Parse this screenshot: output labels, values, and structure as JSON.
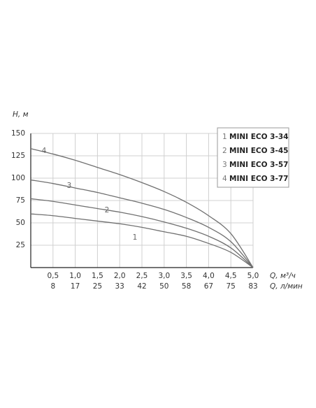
{
  "chart_data": {
    "type": "line",
    "y_label": "H, м",
    "x_label": "Q, м³/ч",
    "x2_label": "Q, л/мин",
    "x": [
      0,
      0.5,
      1.0,
      1.5,
      2.0,
      2.5,
      3.0,
      3.5,
      4.0,
      4.5,
      5.0
    ],
    "series": [
      {
        "label": "1",
        "name": "MINI ECO 3-34",
        "color": "#707070",
        "values": [
          60,
          58,
          55,
          52,
          49,
          45,
          40,
          35,
          27,
          17,
          0
        ]
      },
      {
        "label": "2",
        "name": "MINI ECO 3-45",
        "color": "#707070",
        "values": [
          77,
          74,
          70,
          66,
          62,
          57,
          51,
          44,
          35,
          22,
          0
        ]
      },
      {
        "label": "3",
        "name": "MINI ECO 3-57",
        "color": "#707070",
        "values": [
          98,
          94,
          89,
          84,
          78,
          72,
          65,
          56,
          45,
          29,
          0
        ]
      },
      {
        "label": "4",
        "name": "MINI ECO 3-77",
        "color": "#707070",
        "values": [
          133,
          127,
          120,
          112,
          104,
          95,
          85,
          73,
          58,
          38,
          0
        ]
      }
    ],
    "xlim": [
      0,
      5
    ],
    "ylim": [
      0,
      150
    ],
    "yticks": [
      25,
      50,
      75,
      100,
      125,
      150
    ],
    "xticks": [
      {
        "value": 0.5,
        "label": "0,5"
      },
      {
        "value": 1.0,
        "label": "1,0"
      },
      {
        "value": 1.5,
        "label": "1,5"
      },
      {
        "value": 2.0,
        "label": "2,0"
      },
      {
        "value": 2.5,
        "label": "2,5"
      },
      {
        "value": 3.0,
        "label": "3,0"
      },
      {
        "value": 3.5,
        "label": "3,5"
      },
      {
        "value": 4.0,
        "label": "4,0"
      },
      {
        "value": 4.5,
        "label": "4,5"
      },
      {
        "value": 5.0,
        "label": "5,0"
      }
    ],
    "x2ticks": [
      {
        "value": 0.5,
        "label": "8"
      },
      {
        "value": 1.0,
        "label": "17"
      },
      {
        "value": 1.5,
        "label": "25"
      },
      {
        "value": 2.0,
        "label": "33"
      },
      {
        "value": 2.5,
        "label": "42"
      },
      {
        "value": 3.0,
        "label": "50"
      },
      {
        "value": 3.5,
        "label": "58"
      },
      {
        "value": 4.0,
        "label": "67"
      },
      {
        "value": 4.5,
        "label": "75"
      },
      {
        "value": 5.0,
        "label": "83"
      }
    ],
    "grid": true,
    "legend": "upper-right"
  }
}
